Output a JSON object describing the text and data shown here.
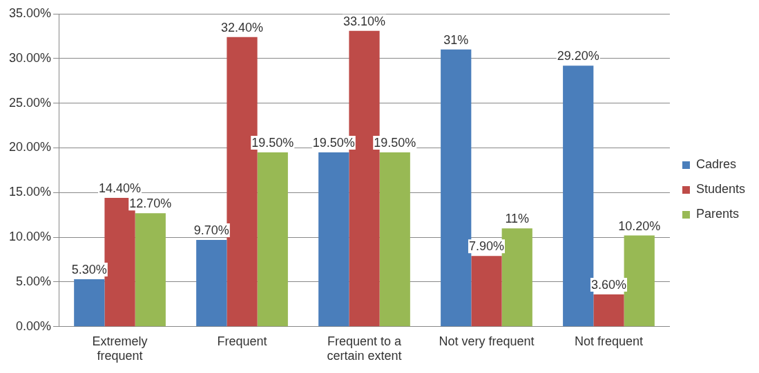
{
  "chart_data": {
    "type": "bar",
    "categories": [
      "Extremely frequent",
      "Frequent",
      "Frequent to a certain extent",
      "Not very frequent",
      "Not frequent"
    ],
    "series": [
      {
        "name": "Cadres",
        "color": "#4a7ebb",
        "values": [
          5.3,
          9.7,
          19.5,
          31,
          29.2
        ],
        "value_labels": [
          "5.30%",
          "9.70%",
          "19.50%",
          "31%",
          "29.20%"
        ]
      },
      {
        "name": "Students",
        "color": "#be4b48",
        "values": [
          14.4,
          32.4,
          33.1,
          7.9,
          3.6
        ],
        "value_labels": [
          "14.40%",
          "32.40%",
          "33.10%",
          "7.90%",
          "3.60%"
        ]
      },
      {
        "name": "Parents",
        "color": "#98b954",
        "values": [
          12.7,
          19.5,
          19.5,
          11,
          10.2
        ],
        "value_labels": [
          "12.70%",
          "19.50%",
          "19.50%",
          "11%",
          "10.20%"
        ]
      }
    ],
    "ylim": [
      0,
      35
    ],
    "yticks": [
      {
        "value": 0,
        "label": "0.00%"
      },
      {
        "value": 5,
        "label": "5.00%"
      },
      {
        "value": 10,
        "label": "10.00%"
      },
      {
        "value": 15,
        "label": "15.00%"
      },
      {
        "value": 20,
        "label": "20.00%"
      },
      {
        "value": 25,
        "label": "25.00%"
      },
      {
        "value": 30,
        "label": "30.00%"
      },
      {
        "value": 35,
        "label": "35.00%"
      }
    ],
    "grid": "y",
    "legend": "right"
  }
}
